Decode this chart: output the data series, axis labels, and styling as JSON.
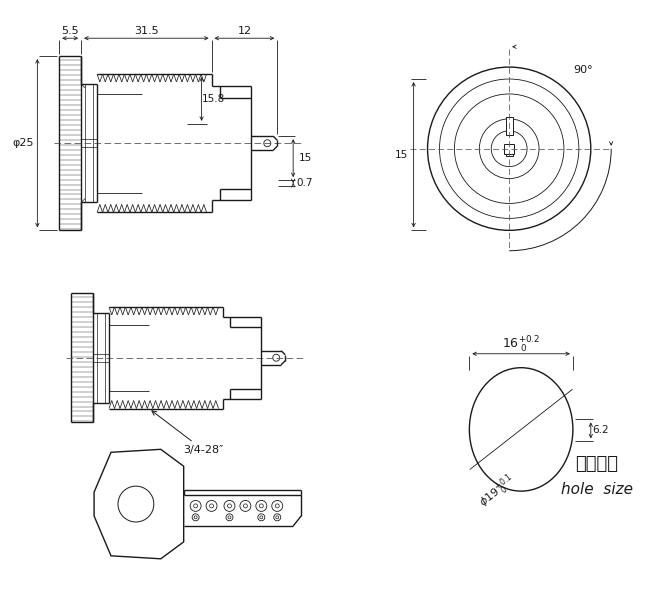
{
  "bg_color": "#ffffff",
  "line_color": "#1a1a1a",
  "figsize": [
    6.62,
    6.03
  ],
  "dpi": 100,
  "annotations": {
    "dim_55": "5.5",
    "dim_315": "31.5",
    "dim_12": "12",
    "dim_158": "15.8",
    "dim_15": "15",
    "dim_07": "0.7",
    "dim_phi25": "φ25",
    "dim_90": "90°",
    "dim_16tol": "$16^{+0.2}_{0}$",
    "dim_62": "6.2",
    "dim_19tol": "$\\phi19^{+0.1}_{0}$",
    "thread": "3/4-28″",
    "chinese": "开孔尺寸",
    "hole_size": "hole  size"
  }
}
